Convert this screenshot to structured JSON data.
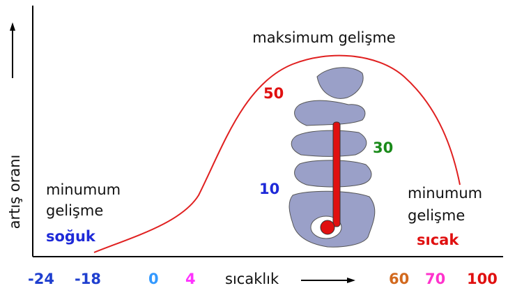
{
  "title": "maksimum gelişme",
  "y_axis_label": "artış oranı",
  "left_note": {
    "lines": [
      "minumum",
      "gelişme"
    ],
    "zone": "soğuk"
  },
  "right_note": {
    "lines": [
      "minumum",
      "gelişme"
    ],
    "zone": "sıcak"
  },
  "thermometer_labels": [
    "50",
    "30",
    "10"
  ],
  "x_axis": {
    "label": "sıcaklık",
    "ticks": [
      "-24",
      "-18",
      "0",
      "4",
      "60",
      "70",
      "100"
    ]
  }
}
